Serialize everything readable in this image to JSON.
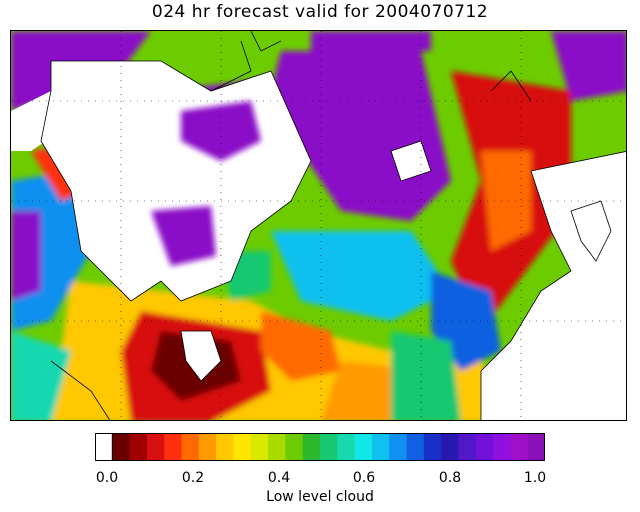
{
  "title": "024 hr forecast valid for 2004070712",
  "colorbar": {
    "label": "Low level cloud",
    "ticks": [
      "0.0",
      "0.2",
      "0.4",
      "0.6",
      "0.8",
      "1.0"
    ],
    "min": 0.0,
    "max": 1.0,
    "colors": [
      "#ffffff",
      "#6a0000",
      "#a00000",
      "#d81010",
      "#ff3010",
      "#ff6a00",
      "#ff9a00",
      "#ffc800",
      "#ffe600",
      "#d8e800",
      "#a8dc00",
      "#6ccc00",
      "#2cb82c",
      "#18c870",
      "#18d8b0",
      "#10e8e8",
      "#10c0f0",
      "#1090f0",
      "#1060e0",
      "#1830c8",
      "#2818b0",
      "#5018c8",
      "#7010d8",
      "#9010e0",
      "#a010c8",
      "#8a10b8"
    ]
  },
  "map": {
    "region": "North Atlantic",
    "colors": {
      "land": "#ffffff",
      "high_cloud": "#8a10c8",
      "coastline": "#000000",
      "gridline": "#000000"
    }
  }
}
